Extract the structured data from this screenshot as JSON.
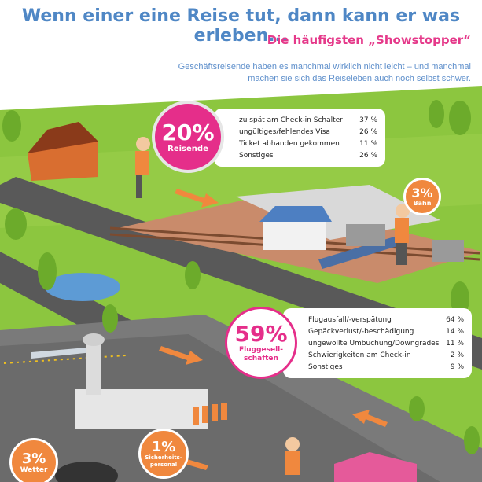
{
  "header": {
    "title": "Wenn einer eine Reise tut, dann kann er was erleben...",
    "subtitle": "Die häufigsten „Showstopper“",
    "intro": "Geschäftsreisende haben es manchmal wirklich nicht leicht – und manchmal machen sie sich das Reiseleben auch noch selbst schwer."
  },
  "reisende": {
    "percent": "20%",
    "label": "Reisende",
    "items": [
      {
        "text": "zu spät am Check-in Schalter",
        "value": "37 %"
      },
      {
        "text": "ungültiges/fehlendes Visa",
        "value": "26 %"
      },
      {
        "text": "Ticket abhanden gekommen",
        "value": "11 %"
      },
      {
        "text": "Sonstiges",
        "value": "26 %"
      }
    ]
  },
  "bahn": {
    "percent": "3%",
    "label": "Bahn"
  },
  "fluggesellschaften": {
    "percent": "59%",
    "label_line1": "Fluggesell-",
    "label_line2": "schaften",
    "items": [
      {
        "text": "Flugausfall/-verspätung",
        "value": "64 %"
      },
      {
        "text": "Gepäckverlust/-beschädigung",
        "value": "14 %"
      },
      {
        "text": "ungewollte Umbuchung/Downgrades",
        "value": "11 %"
      },
      {
        "text": "Schwierigkeiten am Check-in",
        "value": "2 %"
      },
      {
        "text": "Sonstiges",
        "value": "9 %"
      }
    ]
  },
  "wetter": {
    "percent": "3%",
    "label": "Wetter"
  },
  "sicherheit": {
    "percent": "1%",
    "label_line1": "Sicherheits-",
    "label_line2": "personal"
  },
  "colors": {
    "title_blue": "#4f87c5",
    "accent_pink": "#e52e8a",
    "accent_orange": "#f0883e",
    "grass": "#8cc63f",
    "road": "#5a5a5a"
  }
}
